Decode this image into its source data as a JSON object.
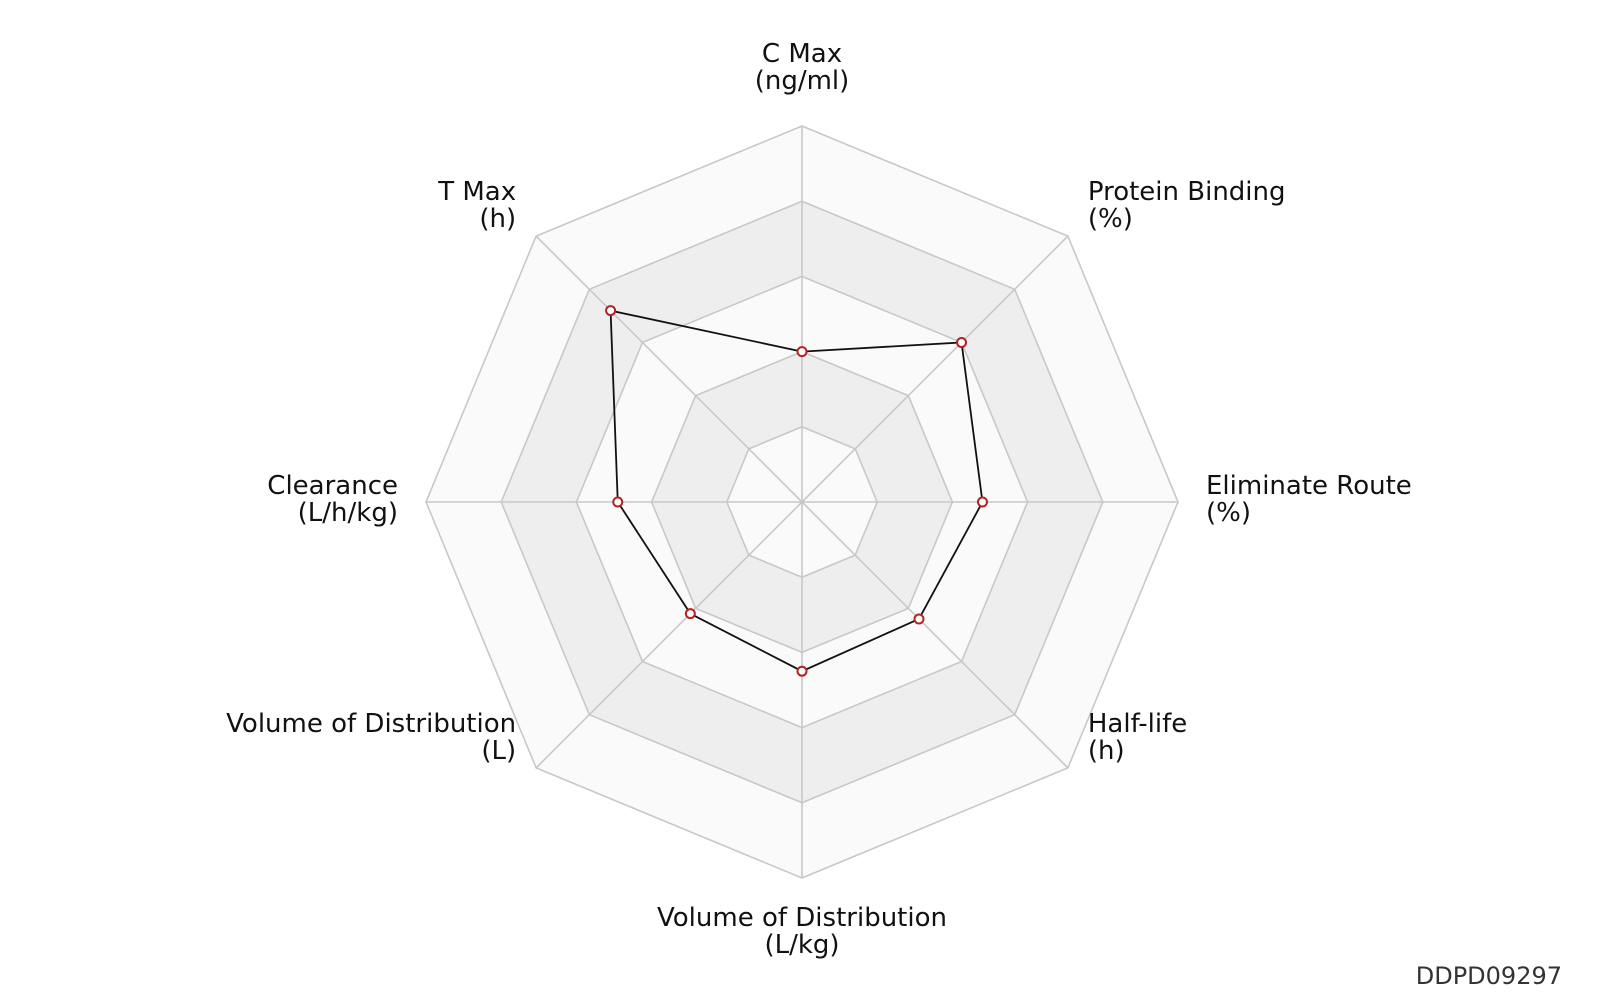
{
  "chart_data": {
    "type": "radar",
    "axes": [
      {
        "name": "C Max",
        "unit": "(ng/ml)"
      },
      {
        "name": "Protein Binding",
        "unit": "(%)"
      },
      {
        "name": "Eliminate Route",
        "unit": "(%)"
      },
      {
        "name": "Half-life",
        "unit": "(h)"
      },
      {
        "name": "Volume of Distribution",
        "unit": "(L/kg)"
      },
      {
        "name": "Volume of Distribution",
        "unit": "(L)"
      },
      {
        "name": "Clearance",
        "unit": "(L/h/kg)"
      },
      {
        "name": "T Max",
        "unit": "(h)"
      }
    ],
    "values": [
      0.4,
      0.6,
      0.48,
      0.44,
      0.45,
      0.42,
      0.49,
      0.72
    ],
    "rings": 5,
    "range": [
      0,
      1
    ],
    "colors": {
      "ring_fill_alt": "#eeeeee",
      "ring_fill": "#fafafa",
      "grid_stroke": "#c8c8c8",
      "series_line": "#111111",
      "point_stroke": "#b22222",
      "point_fill": "#ffffff"
    }
  },
  "footer": {
    "id_text": "DDPD09297"
  }
}
